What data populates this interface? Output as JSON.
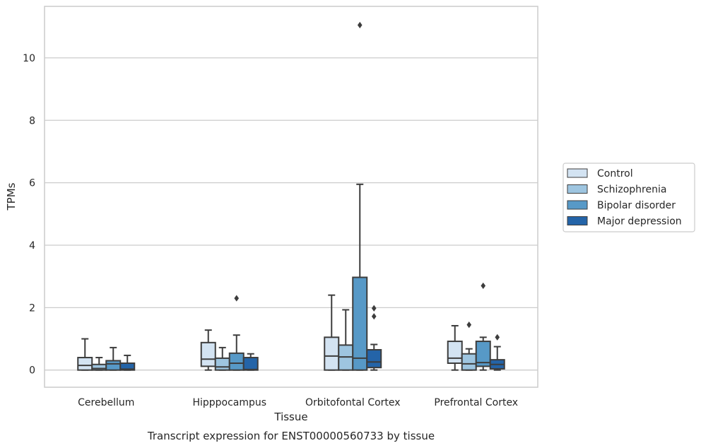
{
  "chart_data": {
    "type": "box",
    "title": "Transcript expression for ENST00000560733 by tissue",
    "xlabel": "Tissue",
    "ylabel": "TPMs",
    "ylim": [
      -0.55,
      11.65
    ],
    "yticks": [
      0,
      2,
      4,
      6,
      8,
      10
    ],
    "grid": true,
    "legend_position": "right",
    "categories": [
      "Cerebellum",
      "Hipppocampus",
      "Orbitofontal Cortex",
      "Prefrontal Cortex"
    ],
    "series": [
      {
        "name": "Control",
        "color": "#d3e3f2",
        "boxes": [
          {
            "whislo": 0.0,
            "q1": 0.0,
            "med": 0.15,
            "q3": 0.4,
            "whishi": 1.0,
            "fliers": []
          },
          {
            "whislo": 0.0,
            "q1": 0.12,
            "med": 0.35,
            "q3": 0.88,
            "whishi": 1.28,
            "fliers": []
          },
          {
            "whislo": 0.0,
            "q1": 0.0,
            "med": 0.45,
            "q3": 1.05,
            "whishi": 2.4,
            "fliers": []
          },
          {
            "whislo": 0.0,
            "q1": 0.22,
            "med": 0.38,
            "q3": 0.92,
            "whishi": 1.42,
            "fliers": []
          }
        ]
      },
      {
        "name": "Schizophrenia",
        "color": "#9ec5e0",
        "boxes": [
          {
            "whislo": 0.0,
            "q1": 0.0,
            "med": 0.05,
            "q3": 0.18,
            "whishi": 0.4,
            "fliers": []
          },
          {
            "whislo": 0.0,
            "q1": 0.0,
            "med": 0.1,
            "q3": 0.38,
            "whishi": 0.72,
            "fliers": []
          },
          {
            "whislo": 0.0,
            "q1": 0.0,
            "med": 0.42,
            "q3": 0.8,
            "whishi": 1.93,
            "fliers": []
          },
          {
            "whislo": 0.0,
            "q1": 0.0,
            "med": 0.2,
            "q3": 0.52,
            "whishi": 0.68,
            "fliers": [
              1.45
            ]
          }
        ]
      },
      {
        "name": "Bipolar disorder",
        "color": "#5799c7",
        "boxes": [
          {
            "whislo": 0.0,
            "q1": 0.0,
            "med": 0.2,
            "q3": 0.3,
            "whishi": 0.72,
            "fliers": []
          },
          {
            "whislo": 0.0,
            "q1": 0.0,
            "med": 0.22,
            "q3": 0.54,
            "whishi": 1.12,
            "fliers": [
              2.3
            ]
          },
          {
            "whislo": 0.0,
            "q1": 0.0,
            "med": 0.38,
            "q3": 2.97,
            "whishi": 5.95,
            "fliers": [
              11.05
            ]
          },
          {
            "whislo": 0.0,
            "q1": 0.12,
            "med": 0.24,
            "q3": 0.92,
            "whishi": 1.05,
            "fliers": [
              2.7
            ]
          }
        ]
      },
      {
        "name": "Major depression",
        "color": "#2464a8",
        "boxes": [
          {
            "whislo": 0.0,
            "q1": 0.0,
            "med": 0.03,
            "q3": 0.22,
            "whishi": 0.47,
            "fliers": []
          },
          {
            "whislo": 0.0,
            "q1": 0.0,
            "med": 0.02,
            "q3": 0.4,
            "whishi": 0.52,
            "fliers": []
          },
          {
            "whislo": 0.0,
            "q1": 0.08,
            "med": 0.26,
            "q3": 0.65,
            "whishi": 0.82,
            "fliers": [
              1.98,
              1.72
            ]
          },
          {
            "whislo": 0.0,
            "q1": 0.04,
            "med": 0.18,
            "q3": 0.33,
            "whishi": 0.75,
            "fliers": [
              1.05
            ]
          }
        ]
      }
    ]
  }
}
